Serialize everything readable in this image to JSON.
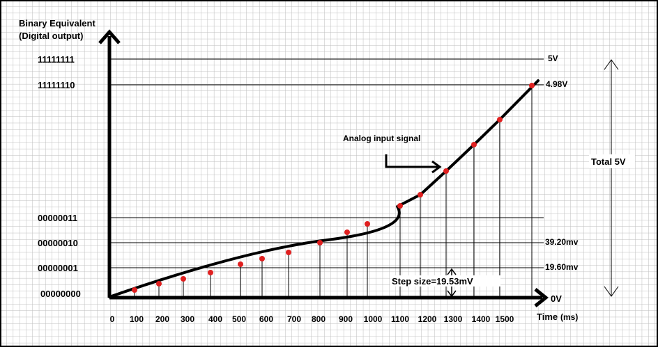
{
  "labels": {
    "y_title_line1": "Binary Equivalent",
    "y_title_line2": "(Digital output)",
    "x_title": "Time",
    "x_unit": "(ms)",
    "analog_label": "Analog input signal",
    "total_label": "Total 5V",
    "step_label": "Step size=19.53mV"
  },
  "binary_codes": [
    "11111111",
    "11111110",
    "00000011",
    "00000010",
    "00000001",
    "00000000"
  ],
  "voltage_labels": [
    "5V",
    "4.98V",
    "39.20mv",
    "19.60mv",
    "0V"
  ],
  "time_ticks": [
    "0",
    "100",
    "200",
    "300",
    "400",
    "500",
    "600",
    "700",
    "800",
    "900",
    "1000",
    "1100",
    "1200",
    "1300",
    "1400",
    "1500"
  ],
  "colors": {
    "grid": "#bdbdbd",
    "curve": "#000000",
    "sample_point": "#e02020"
  }
}
